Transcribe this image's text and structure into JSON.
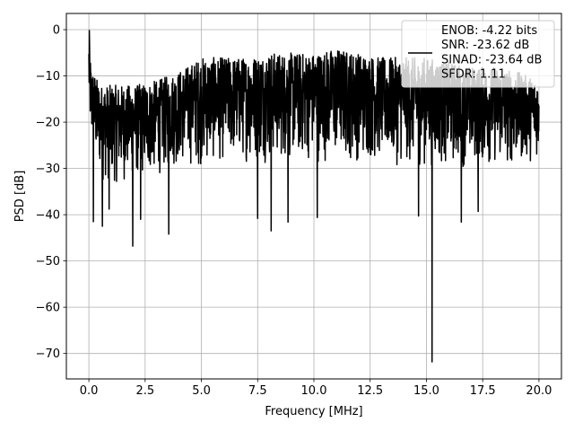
{
  "chart_data": {
    "type": "line",
    "title": "",
    "xlabel": "Frequency [MHz]",
    "ylabel": "PSD [dB]",
    "xlim": [
      -1.0,
      21.0
    ],
    "ylim": [
      -75.5,
      3.5
    ],
    "x_ticks": [
      0.0,
      2.5,
      5.0,
      7.5,
      10.0,
      12.5,
      15.0,
      17.5,
      20.0
    ],
    "x_tick_labels": [
      "0.0",
      "2.5",
      "5.0",
      "7.5",
      "10.0",
      "12.5",
      "15.0",
      "17.5",
      "20.0"
    ],
    "y_ticks": [
      0,
      -10,
      -20,
      -30,
      -40,
      -50,
      -60,
      -70
    ],
    "y_tick_labels": [
      "0",
      "−10",
      "−20",
      "−30",
      "−40",
      "−50",
      "−60",
      "−70"
    ],
    "grid": true,
    "legend_position": "top-right",
    "legend_lines": [
      "ENOB: -4.22 bits",
      "SNR: -23.62 dB",
      "SINAD: -23.64 dB",
      "SFDR: 1.11"
    ],
    "series": [
      {
        "color": "#000000",
        "envelope_upper": [
          [
            0.0,
            -1
          ],
          [
            0.1,
            -8
          ],
          [
            0.5,
            -12
          ],
          [
            1.0,
            -12
          ],
          [
            2.0,
            -12
          ],
          [
            3.0,
            -11
          ],
          [
            4.0,
            -9
          ],
          [
            5.0,
            -6
          ],
          [
            6.0,
            -6
          ],
          [
            7.0,
            -6
          ],
          [
            8.0,
            -5
          ],
          [
            9.0,
            -5
          ],
          [
            10.0,
            -5
          ],
          [
            11.0,
            -4
          ],
          [
            12.0,
            -5
          ],
          [
            13.0,
            -6
          ],
          [
            14.0,
            -6
          ],
          [
            15.0,
            -6
          ],
          [
            16.0,
            -7
          ],
          [
            17.0,
            -8
          ],
          [
            18.0,
            -8
          ],
          [
            19.0,
            -9
          ],
          [
            20.0,
            -11
          ]
        ],
        "envelope_lower": [
          [
            0.0,
            -20
          ],
          [
            0.1,
            -27
          ],
          [
            0.5,
            -33
          ],
          [
            1.0,
            -34
          ],
          [
            2.0,
            -33
          ],
          [
            3.0,
            -32
          ],
          [
            4.0,
            -30
          ],
          [
            5.0,
            -30
          ],
          [
            6.0,
            -29
          ],
          [
            7.0,
            -29
          ],
          [
            8.0,
            -29
          ],
          [
            9.0,
            -29
          ],
          [
            10.0,
            -29
          ],
          [
            11.0,
            -29
          ],
          [
            12.0,
            -29
          ],
          [
            13.0,
            -29
          ],
          [
            14.0,
            -30
          ],
          [
            15.0,
            -30
          ],
          [
            16.0,
            -30
          ],
          [
            17.0,
            -30
          ],
          [
            18.0,
            -30
          ],
          [
            19.0,
            -30
          ],
          [
            20.0,
            -28
          ]
        ],
        "notable_points": [
          {
            "x": 0.02,
            "y": -0.2
          },
          {
            "x": 0.2,
            "y": -41.5
          },
          {
            "x": 0.6,
            "y": -42.5
          },
          {
            "x": 0.9,
            "y": -38.8
          },
          {
            "x": 1.95,
            "y": -46.8
          },
          {
            "x": 2.3,
            "y": -41.0
          },
          {
            "x": 3.55,
            "y": -44.2
          },
          {
            "x": 7.5,
            "y": -40.8
          },
          {
            "x": 8.1,
            "y": -43.5
          },
          {
            "x": 8.85,
            "y": -41.6
          },
          {
            "x": 10.15,
            "y": -40.6
          },
          {
            "x": 14.65,
            "y": -40.3
          },
          {
            "x": 15.25,
            "y": -71.8
          },
          {
            "x": 16.55,
            "y": -41.6
          },
          {
            "x": 17.3,
            "y": -39.3
          }
        ]
      }
    ]
  }
}
